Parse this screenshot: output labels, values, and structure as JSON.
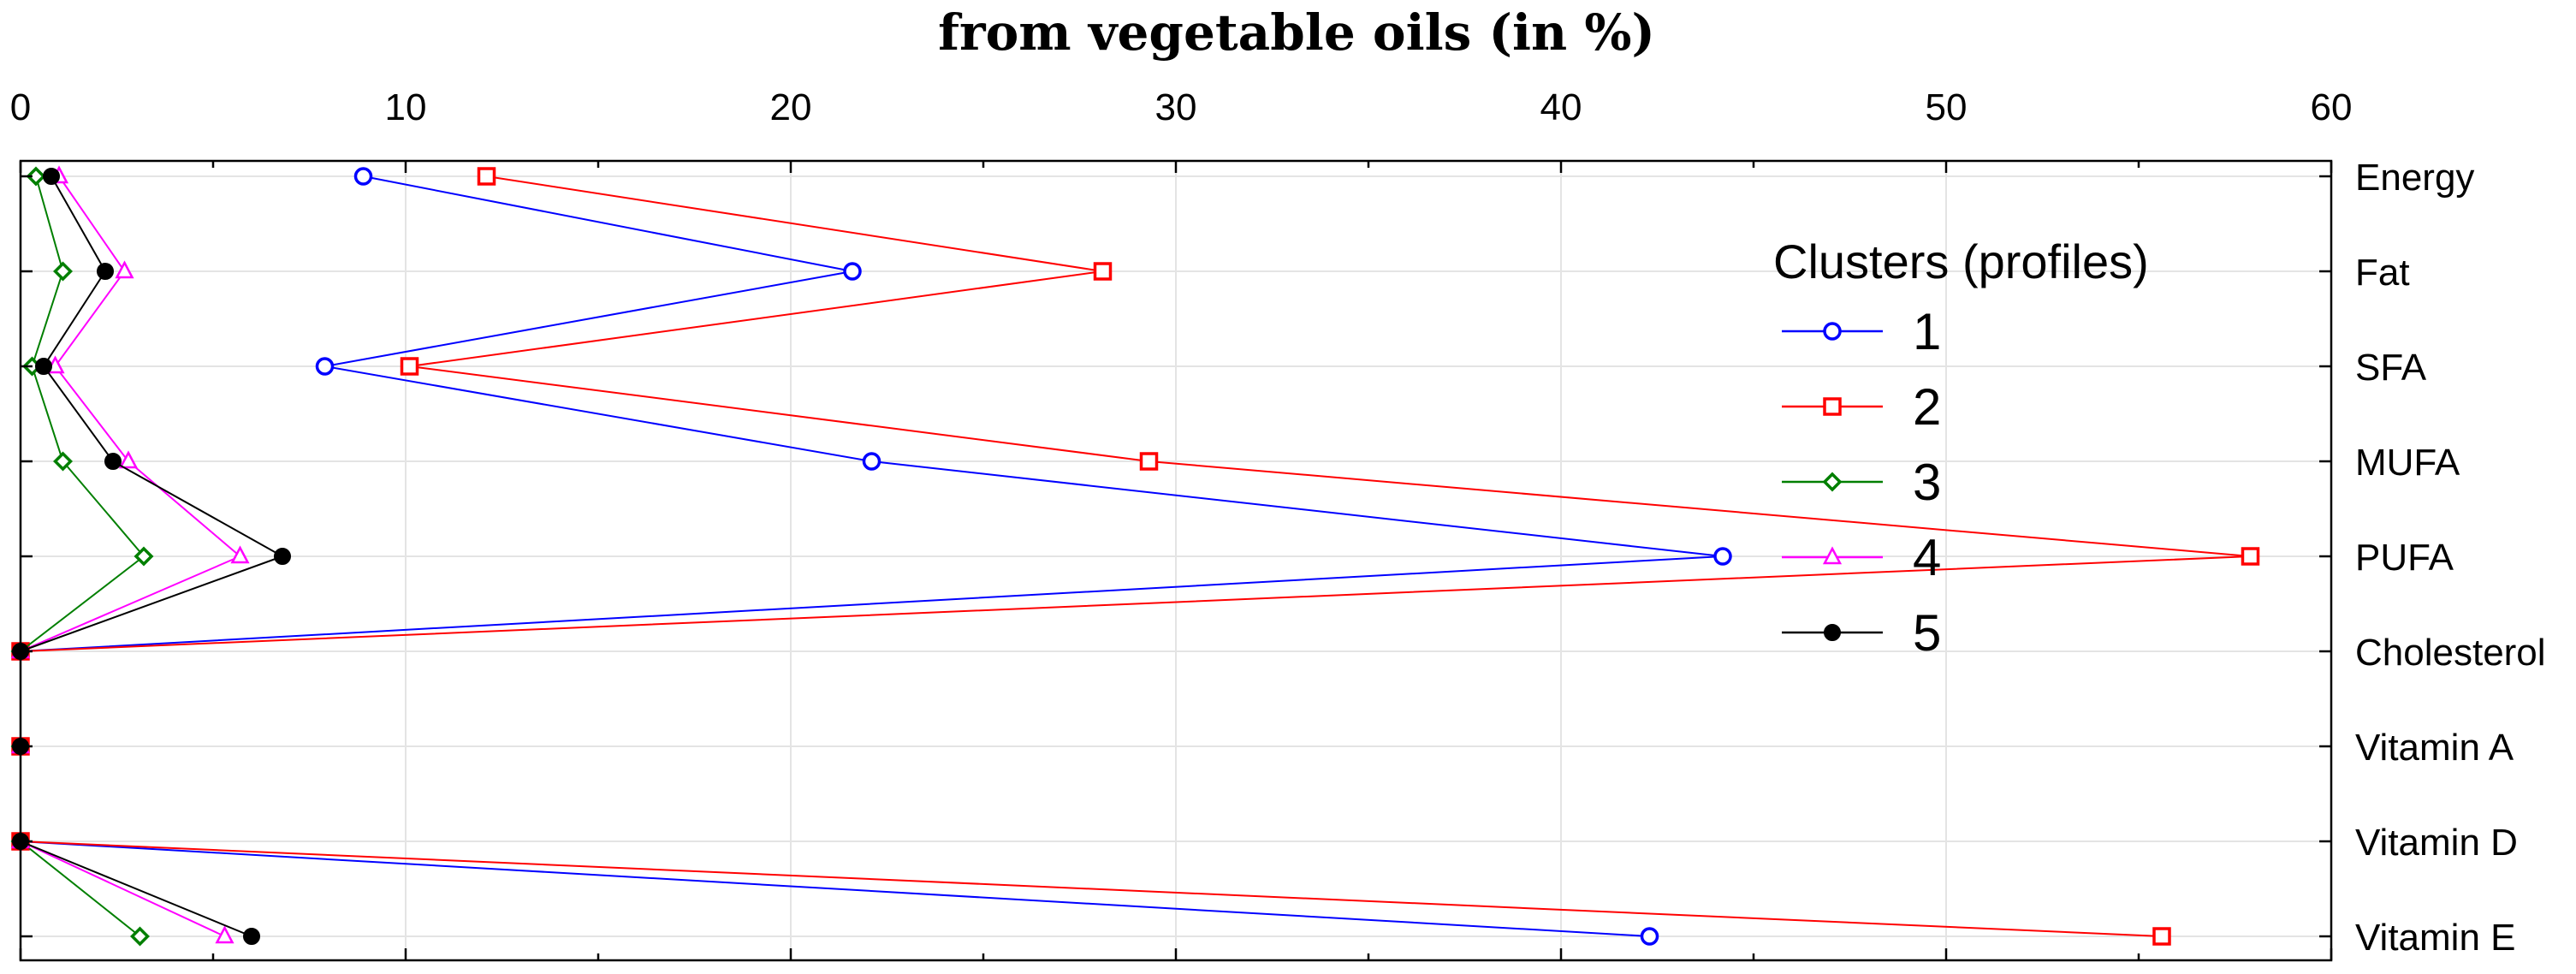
{
  "chart_data": {
    "type": "line",
    "orientation": "horizontal-profile",
    "title": "from vegetable oils (in %)",
    "xlabel": "",
    "ylabel": "",
    "xlim": [
      0,
      60
    ],
    "x_ticks": [
      0,
      10,
      20,
      30,
      40,
      50,
      60
    ],
    "grid": true,
    "categories": [
      "Energy",
      "Fat",
      "SFA",
      "MUFA",
      "PUFA",
      "Cholesterol",
      "Vitamin A",
      "Vitamin D",
      "Vitamin E"
    ],
    "legend": {
      "title": "Clusters (profiles)",
      "position": "top-right"
    },
    "series": [
      {
        "name": "1",
        "color": "#0000ff",
        "marker": "circle",
        "values": [
          8.9,
          21.6,
          7.9,
          22.1,
          44.2,
          0,
          0,
          0,
          42.3
        ]
      },
      {
        "name": "2",
        "color": "#ff0000",
        "marker": "square",
        "values": [
          12.1,
          28.1,
          10.1,
          29.3,
          57.9,
          0,
          0,
          0,
          55.6
        ]
      },
      {
        "name": "3",
        "color": "#007f00",
        "marker": "diamond",
        "values": [
          0.4,
          1.1,
          0.3,
          1.1,
          3.2,
          0,
          0,
          0,
          3.1
        ]
      },
      {
        "name": "4",
        "color": "#ff00ff",
        "marker": "triangle",
        "values": [
          1.0,
          2.7,
          0.9,
          2.8,
          5.7,
          0,
          0,
          0,
          5.3
        ]
      },
      {
        "name": "5",
        "color": "#000000",
        "marker": "filled-circle",
        "values": [
          0.8,
          2.2,
          0.6,
          2.4,
          6.8,
          0,
          0,
          0,
          6.0
        ]
      }
    ]
  }
}
